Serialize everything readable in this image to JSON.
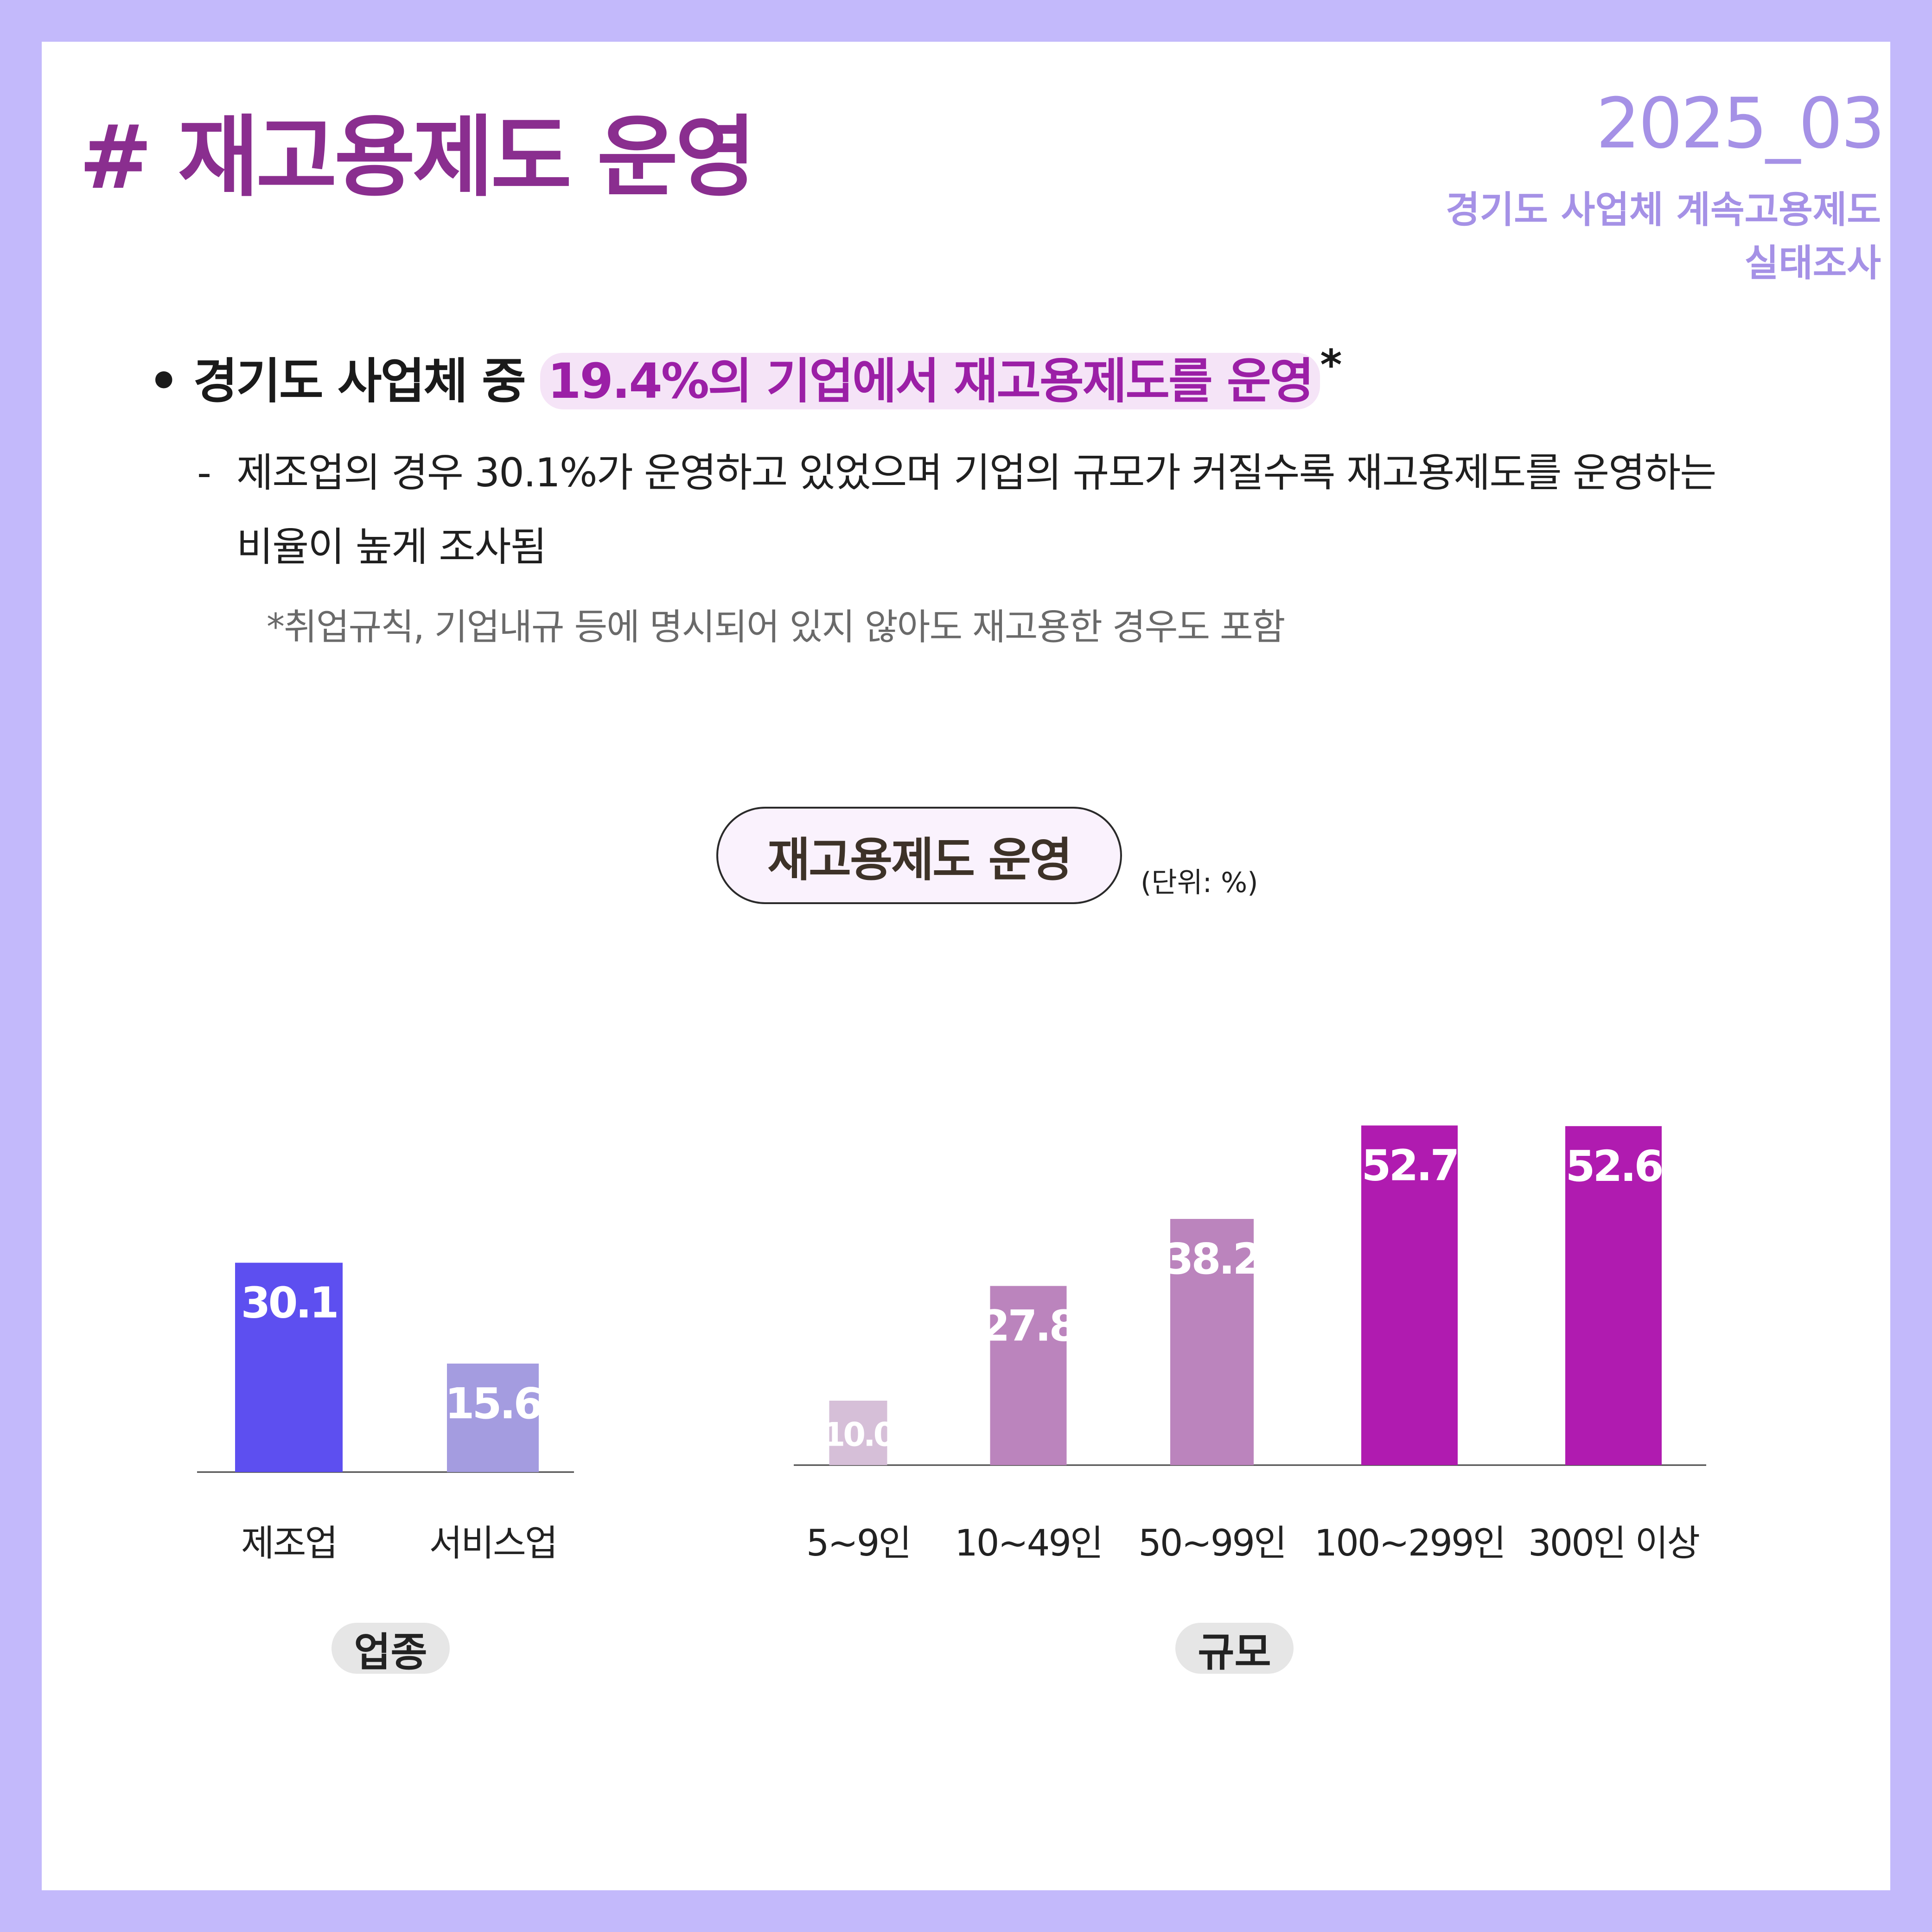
{
  "header": {
    "title": "# 재고용제도 운영",
    "year": "2025_03",
    "subtitle": "경기도 사업체 계속고용제도\n실태조사"
  },
  "summary": {
    "bullet_prefix": "경기도 사업체 중",
    "bullet_highlight": "19.4%의 기업에서 재고용제도를 운영",
    "bullet_mark": "*",
    "dash": "-",
    "detail": "제조업의 경우 30.1%가 운영하고 있었으며 기업의 규모가 커질수록 재고용제도를 운영하는 비율이 높게 조사됨",
    "footnote": "*취업규칙, 기업내규 등에 명시되어 있지 않아도 재고용한 경우도 포함"
  },
  "chart_header": {
    "title": "재고용제도 운영",
    "unit": "(단위: %)"
  },
  "chart_data": [
    {
      "type": "bar",
      "group_label": "업종",
      "categories": [
        "제조업",
        "서비스업"
      ],
      "values": [
        30.1,
        15.6
      ],
      "value_labels": [
        "30.1",
        "15.6"
      ],
      "colors": [
        "#5d4ff0",
        "#a49ce0"
      ],
      "ylim": [
        0,
        60
      ]
    },
    {
      "type": "bar",
      "group_label": "규모",
      "categories": [
        "5~9인",
        "10~49인",
        "50~99인",
        "100~299인",
        "300인 이상"
      ],
      "values": [
        10.0,
        27.8,
        38.2,
        52.7,
        52.6
      ],
      "value_labels": [
        "10.0",
        "27.8",
        "38.2",
        "52.7",
        "52.6"
      ],
      "colors": [
        "#d6bfd8",
        "#bb84bd",
        "#bb84bd",
        "#b01bb0",
        "#b01bb0"
      ],
      "ylim": [
        0,
        60
      ]
    }
  ]
}
